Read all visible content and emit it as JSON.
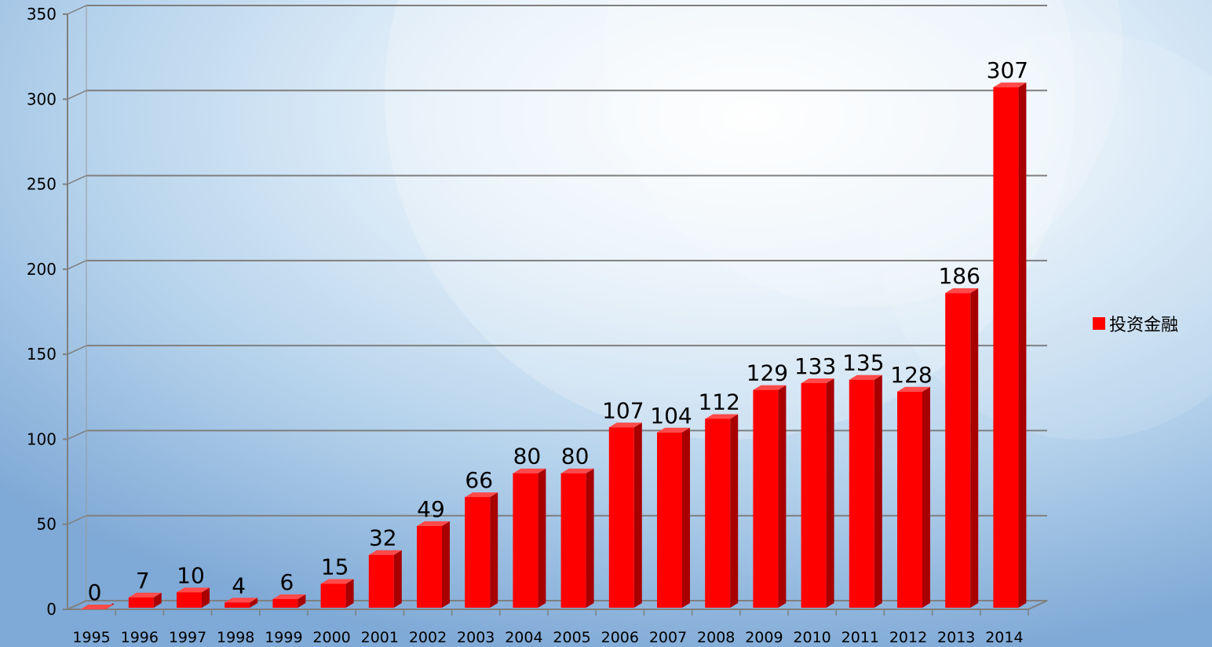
{
  "chart_data": {
    "type": "bar",
    "categories": [
      "1995",
      "1996",
      "1997",
      "1998",
      "1999",
      "2000",
      "2001",
      "2002",
      "2003",
      "2004",
      "2005",
      "2006",
      "2007",
      "2008",
      "2009",
      "2010",
      "2011",
      "2012",
      "2013",
      "2014"
    ],
    "series": [
      {
        "name": "投资金融",
        "values": [
          0,
          7,
          10,
          4,
          6,
          15,
          32,
          49,
          66,
          80,
          80,
          107,
          104,
          112,
          129,
          133,
          135,
          128,
          186,
          307
        ]
      }
    ],
    "ylim": [
      0,
      350
    ],
    "yticks": [
      0,
      50,
      100,
      150,
      200,
      250,
      300,
      350
    ],
    "grid": true,
    "legend_position": "right",
    "bar_color": "#ff0000"
  },
  "legend": {
    "label": "投资金融",
    "color": "#ff0000"
  }
}
